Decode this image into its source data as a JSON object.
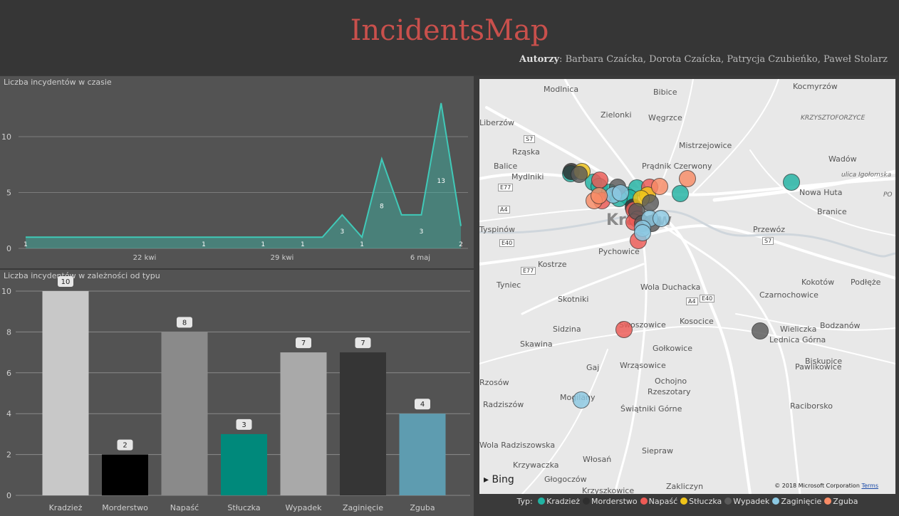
{
  "header": {
    "title": "IncidentsMap",
    "authors_label": "Autorzy",
    "authors_sep": ": ",
    "authors": "Barbara Czaícka, Dorota Czaícka, Patrycja Czubieńko, Paweł Stolarz"
  },
  "line_panel": {
    "title": "Liczba incydentów w czasie"
  },
  "bar_panel": {
    "title": "Liczba incydentów w zależności od typu"
  },
  "chart_data": [
    {
      "type": "area",
      "title": "Liczba incydentów w czasie",
      "x_ticks": [
        "22 kwi",
        "29 kwi",
        "6 maj"
      ],
      "y_ticks": [
        0,
        5,
        10
      ],
      "ylim": [
        0,
        13.5
      ],
      "values": [
        1,
        1,
        1,
        1,
        1,
        1,
        1,
        1,
        1,
        1,
        1,
        1,
        1,
        1,
        1,
        1,
        3,
        1,
        8,
        3,
        3,
        13,
        2
      ],
      "data_labels": [
        {
          "index": 0,
          "label": "1"
        },
        {
          "index": 9,
          "label": "1"
        },
        {
          "index": 12,
          "label": "1"
        },
        {
          "index": 14,
          "label": "1"
        },
        {
          "index": 16,
          "label": "3"
        },
        {
          "index": 17,
          "label": "1"
        },
        {
          "index": 18,
          "label": "8"
        },
        {
          "index": 20,
          "label": "3"
        },
        {
          "index": 21,
          "label": "13"
        },
        {
          "index": 22,
          "label": "2"
        }
      ],
      "color": "#3fb8a8"
    },
    {
      "type": "bar",
      "title": "Liczba incydentów w zależności od typu",
      "categories": [
        "Kradzież",
        "Morderstwo",
        "Napaść",
        "Stłuczka",
        "Wypadek",
        "Zaginięcie",
        "Zguba"
      ],
      "values": [
        10,
        2,
        8,
        3,
        7,
        7,
        4
      ],
      "colors": [
        "#c8c8c8",
        "#000000",
        "#8a8a8a",
        "#00897b",
        "#a9a9a9",
        "#353535",
        "#5e9cb0"
      ],
      "y_ticks": [
        0,
        2,
        4,
        6,
        8,
        10
      ],
      "ylim": [
        0,
        10
      ]
    }
  ],
  "map": {
    "places": [
      {
        "name": "Modlnica",
        "cls": ""
      },
      {
        "name": "Bibice",
        "cls": ""
      },
      {
        "name": "Kocmyrzów",
        "cls": ""
      },
      {
        "name": "Zielonki",
        "cls": ""
      },
      {
        "name": "Węgrzce",
        "cls": ""
      },
      {
        "name": "KRZYSZTOFORZYCE",
        "cls": "it"
      },
      {
        "name": "Liberzów",
        "cls": ""
      },
      {
        "name": "Rząska",
        "cls": ""
      },
      {
        "name": "Mistrzejowice",
        "cls": ""
      },
      {
        "name": "Wadów",
        "cls": ""
      },
      {
        "name": "Balice",
        "cls": ""
      },
      {
        "name": "Prądnik Czerwony",
        "cls": ""
      },
      {
        "name": "ulica Igołomska",
        "cls": "it"
      },
      {
        "name": "Mydlniki",
        "cls": ""
      },
      {
        "name": "Nowa Huta",
        "cls": ""
      },
      {
        "name": "PO",
        "cls": "it"
      },
      {
        "name": "Branice",
        "cls": ""
      },
      {
        "name": "Tyspinów",
        "cls": ""
      },
      {
        "name": "Kraków",
        "cls": ""
      },
      {
        "name": "Przewóz",
        "cls": ""
      },
      {
        "name": "Pychowice",
        "cls": ""
      },
      {
        "name": "Kostrze",
        "cls": ""
      },
      {
        "name": "Kokotów",
        "cls": ""
      },
      {
        "name": "Podłęże",
        "cls": ""
      },
      {
        "name": "Tyniec",
        "cls": ""
      },
      {
        "name": "Wola Duchacka",
        "cls": ""
      },
      {
        "name": "Czarnochowice",
        "cls": ""
      },
      {
        "name": "Skotniki",
        "cls": ""
      },
      {
        "name": "Kosocice",
        "cls": ""
      },
      {
        "name": "Sidzina",
        "cls": ""
      },
      {
        "name": "Swoszowice",
        "cls": ""
      },
      {
        "name": "Wieliczka",
        "cls": ""
      },
      {
        "name": "Bodzanów",
        "cls": ""
      },
      {
        "name": "Lednica Górna",
        "cls": ""
      },
      {
        "name": "Skawina",
        "cls": ""
      },
      {
        "name": "Gołkowice",
        "cls": ""
      },
      {
        "name": "Biskupice",
        "cls": ""
      },
      {
        "name": "Gaj",
        "cls": ""
      },
      {
        "name": "Wrząsowice",
        "cls": ""
      },
      {
        "name": "Pawlikowice",
        "cls": ""
      },
      {
        "name": "Ochojno",
        "cls": ""
      },
      {
        "name": "Rzeszotary",
        "cls": ""
      },
      {
        "name": "Rzosów",
        "cls": ""
      },
      {
        "name": "Mogilany",
        "cls": ""
      },
      {
        "name": "Radziszów",
        "cls": ""
      },
      {
        "name": "Świątniki Górne",
        "cls": ""
      },
      {
        "name": "Raciborsko",
        "cls": ""
      },
      {
        "name": "Wola Radziszowska",
        "cls": ""
      },
      {
        "name": "Krzywaczka",
        "cls": ""
      },
      {
        "name": "Włosań",
        "cls": ""
      },
      {
        "name": "Siepraw",
        "cls": ""
      },
      {
        "name": "Głogoczów",
        "cls": ""
      },
      {
        "name": "Krzyszkowice",
        "cls": ""
      },
      {
        "name": "Zakliczyn",
        "cls": ""
      }
    ],
    "roads": [
      "S7",
      "E77",
      "A4",
      "E40",
      "S7",
      "E77",
      "A4",
      "E40"
    ],
    "bing_label": "Bing",
    "copyright": "© 2018 Microsoft Corporation",
    "terms": "Terms"
  },
  "legend": {
    "label": "Typ:",
    "items": [
      {
        "name": "Kradzież",
        "color": "#21b3a3"
      },
      {
        "name": "Morderstwo",
        "color": "#2e2e2e"
      },
      {
        "name": "Napaść",
        "color": "#ee5a55"
      },
      {
        "name": "Stłuczka",
        "color": "#f0c419"
      },
      {
        "name": "Wypadek",
        "color": "#5a5a5a"
      },
      {
        "name": "Zaginięcie",
        "color": "#8cc9e3"
      },
      {
        "name": "Zguba",
        "color": "#f98c66"
      }
    ]
  },
  "incidents": [
    {
      "type": "Kradzież"
    },
    {
      "type": "Kradzież"
    },
    {
      "type": "Kradzież"
    },
    {
      "type": "Kradzież"
    },
    {
      "type": "Kradzież"
    },
    {
      "type": "Kradzież"
    },
    {
      "type": "Kradzież"
    },
    {
      "type": "Kradzież"
    },
    {
      "type": "Kradzież"
    },
    {
      "type": "Kradzież"
    },
    {
      "type": "Morderstwo"
    },
    {
      "type": "Morderstwo"
    },
    {
      "type": "Napaść"
    },
    {
      "type": "Napaść"
    },
    {
      "type": "Napaść"
    },
    {
      "type": "Napaść"
    },
    {
      "type": "Napaść"
    },
    {
      "type": "Napaść"
    },
    {
      "type": "Napaść"
    },
    {
      "type": "Napaść"
    },
    {
      "type": "Stłuczka"
    },
    {
      "type": "Stłuczka"
    },
    {
      "type": "Stłuczka"
    },
    {
      "type": "Wypadek"
    },
    {
      "type": "Wypadek"
    },
    {
      "type": "Wypadek"
    },
    {
      "type": "Wypadek"
    },
    {
      "type": "Wypadek"
    },
    {
      "type": "Wypadek"
    },
    {
      "type": "Wypadek"
    },
    {
      "type": "Zaginięcie"
    },
    {
      "type": "Zaginięcie"
    },
    {
      "type": "Zaginięcie"
    },
    {
      "type": "Zaginięcie"
    },
    {
      "type": "Zaginięcie"
    },
    {
      "type": "Zaginięcie"
    },
    {
      "type": "Zaginięcie"
    },
    {
      "type": "Zguba"
    },
    {
      "type": "Zguba"
    },
    {
      "type": "Zguba"
    },
    {
      "type": "Zguba"
    }
  ]
}
